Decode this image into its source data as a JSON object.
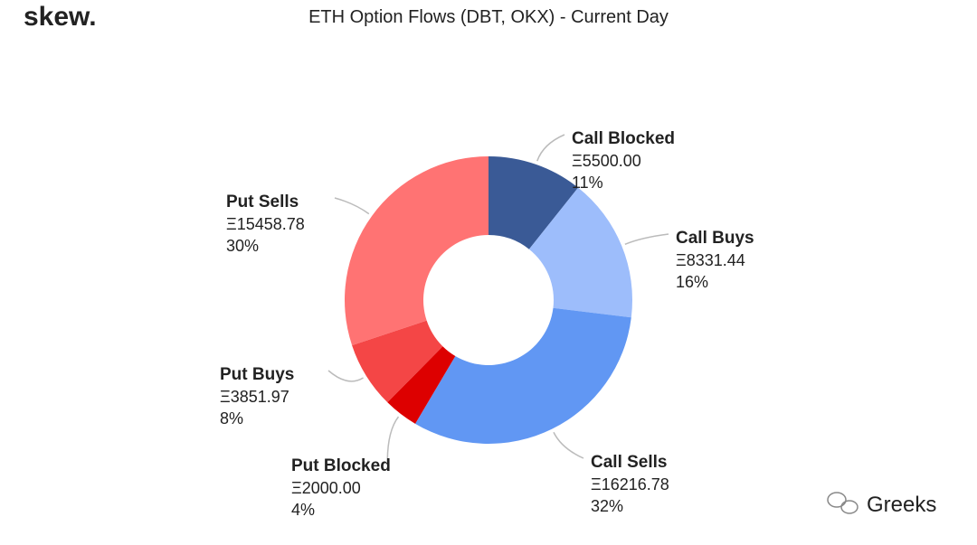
{
  "chart_data": {
    "type": "pie",
    "donut": true,
    "title": "ETH Option Flows (DBT, OKX) - Current Day",
    "logo": "skew.",
    "watermark": "Greeks",
    "categories": [
      "Call Blocked",
      "Call Buys",
      "Call Sells",
      "Put Blocked",
      "Put Buys",
      "Put Sells"
    ],
    "values": [
      5500,
      8331.44,
      16216.78,
      2000,
      3851.97,
      15458.78
    ],
    "value_labels": [
      "Ξ5500.00",
      "Ξ8331.44",
      "Ξ16216.78",
      "Ξ2000.00",
      "Ξ3851.97",
      "Ξ15458.78"
    ],
    "percent_labels": [
      "11%",
      "16%",
      "32%",
      "4%",
      "8%",
      "30%"
    ],
    "colors": [
      "#3a5a96",
      "#9dbdfb",
      "#6197f3",
      "#dd0000",
      "#f44646",
      "#ff7373"
    ]
  }
}
